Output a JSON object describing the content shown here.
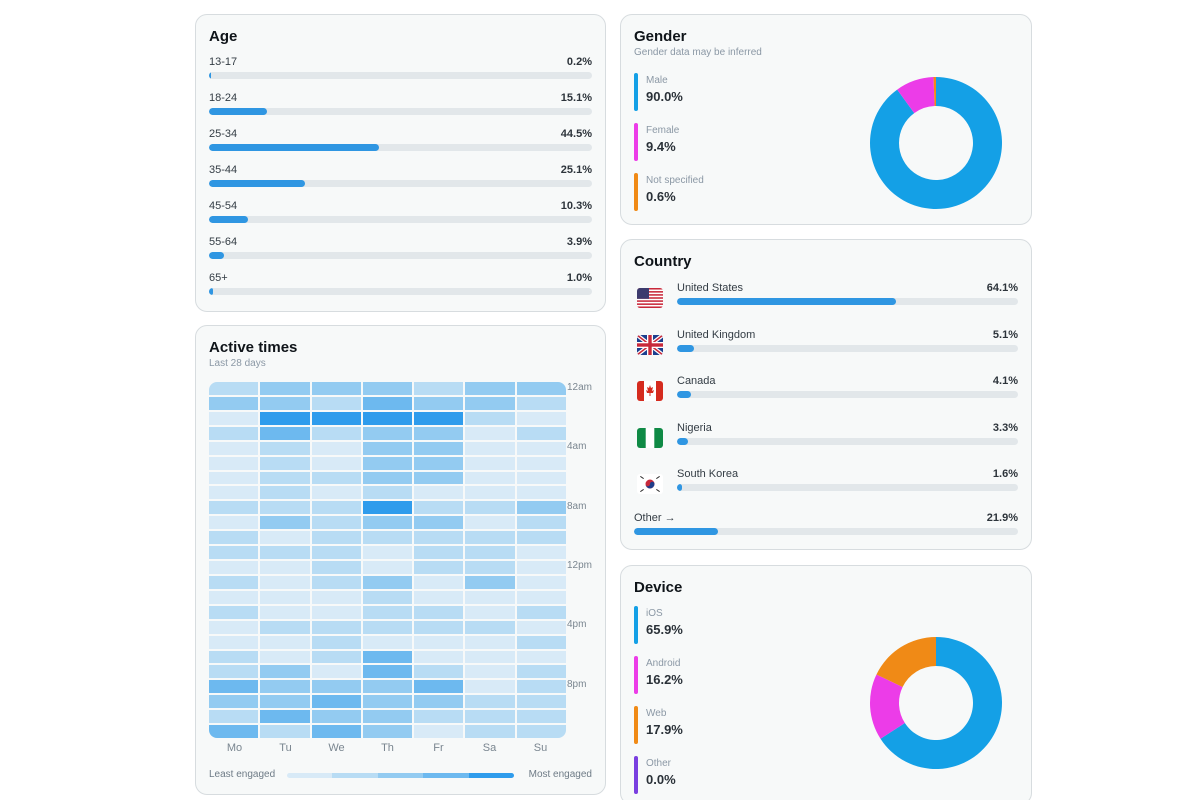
{
  "colors": {
    "accent_blue": "#2f96e2",
    "donut_blue": "#14a0e6",
    "magenta": "#ec3ce8",
    "orange": "#f08a16",
    "purple": "#7a3fe0",
    "track": "#e2e7ea",
    "heat_levels": [
      "#d8eaf7",
      "#b8dcf4",
      "#93cbf1",
      "#6db9ef",
      "#2f9cec"
    ]
  },
  "age": {
    "title": "Age",
    "items": [
      {
        "label": "13-17",
        "value": "0.2%",
        "pct": 0.2
      },
      {
        "label": "18-24",
        "value": "15.1%",
        "pct": 15.1
      },
      {
        "label": "25-34",
        "value": "44.5%",
        "pct": 44.5
      },
      {
        "label": "35-44",
        "value": "25.1%",
        "pct": 25.1
      },
      {
        "label": "45-54",
        "value": "10.3%",
        "pct": 10.3
      },
      {
        "label": "55-64",
        "value": "3.9%",
        "pct": 3.9
      },
      {
        "label": "65+",
        "value": "1.0%",
        "pct": 1.0
      }
    ]
  },
  "gender": {
    "title": "Gender",
    "subtitle": "Gender data may be inferred",
    "items": [
      {
        "label": "Male",
        "value": "90.0%",
        "pct": 90.0,
        "color": "#14a0e6"
      },
      {
        "label": "Female",
        "value": "9.4%",
        "pct": 9.4,
        "color": "#ec3ce8"
      },
      {
        "label": "Not specified",
        "value": "0.6%",
        "pct": 0.6,
        "color": "#f08a16"
      }
    ]
  },
  "country": {
    "title": "Country",
    "items": [
      {
        "label": "United States",
        "value": "64.1%",
        "pct": 64.1,
        "flag": "us-flag-icon"
      },
      {
        "label": "United Kingdom",
        "value": "5.1%",
        "pct": 5.1,
        "flag": "uk-flag-icon"
      },
      {
        "label": "Canada",
        "value": "4.1%",
        "pct": 4.1,
        "flag": "canada-flag-icon"
      },
      {
        "label": "Nigeria",
        "value": "3.3%",
        "pct": 3.3,
        "flag": "nigeria-flag-icon"
      },
      {
        "label": "South Korea",
        "value": "1.6%",
        "pct": 1.6,
        "flag": "south-korea-flag-icon"
      }
    ],
    "other": {
      "label": "Other →",
      "value": "21.9%",
      "pct": 21.9
    }
  },
  "active_times": {
    "title": "Active times",
    "subtitle": "Last 28 days",
    "days": [
      "Mo",
      "Tu",
      "We",
      "Th",
      "Fr",
      "Sa",
      "Su"
    ],
    "time_labels": [
      "12am",
      "4am",
      "8am",
      "12pm",
      "4pm",
      "8pm"
    ],
    "legend_least": "Least engaged",
    "legend_most": "Most engaged",
    "grid": [
      [
        2,
        3,
        3,
        3,
        2,
        3,
        3
      ],
      [
        3,
        3,
        2,
        4,
        3,
        3,
        2
      ],
      [
        1,
        5,
        5,
        5,
        5,
        2,
        1
      ],
      [
        2,
        4,
        2,
        3,
        3,
        1,
        2
      ],
      [
        1,
        2,
        1,
        3,
        3,
        1,
        1
      ],
      [
        1,
        2,
        1,
        3,
        3,
        1,
        1
      ],
      [
        1,
        2,
        2,
        3,
        3,
        1,
        1
      ],
      [
        1,
        2,
        1,
        2,
        1,
        1,
        1
      ],
      [
        2,
        2,
        2,
        5,
        2,
        2,
        3
      ],
      [
        1,
        3,
        2,
        3,
        3,
        1,
        2
      ],
      [
        2,
        1,
        2,
        2,
        2,
        2,
        2
      ],
      [
        2,
        2,
        2,
        1,
        2,
        2,
        1
      ],
      [
        1,
        1,
        2,
        1,
        2,
        2,
        1
      ],
      [
        2,
        1,
        2,
        3,
        1,
        3,
        1
      ],
      [
        1,
        1,
        1,
        2,
        1,
        1,
        1
      ],
      [
        2,
        1,
        1,
        2,
        2,
        1,
        2
      ],
      [
        1,
        2,
        2,
        2,
        2,
        2,
        1
      ],
      [
        1,
        1,
        2,
        1,
        1,
        1,
        2
      ],
      [
        2,
        1,
        2,
        4,
        1,
        1,
        1
      ],
      [
        2,
        3,
        1,
        4,
        2,
        1,
        2
      ],
      [
        4,
        3,
        3,
        3,
        4,
        1,
        2
      ],
      [
        3,
        3,
        4,
        3,
        3,
        2,
        2
      ],
      [
        2,
        4,
        3,
        3,
        2,
        2,
        2
      ],
      [
        4,
        2,
        4,
        3,
        1,
        2,
        2
      ]
    ]
  },
  "device": {
    "title": "Device",
    "items": [
      {
        "label": "iOS",
        "value": "65.9%",
        "pct": 65.9,
        "color": "#14a0e6"
      },
      {
        "label": "Android",
        "value": "16.2%",
        "pct": 16.2,
        "color": "#ec3ce8"
      },
      {
        "label": "Web",
        "value": "17.9%",
        "pct": 17.9,
        "color": "#f08a16"
      },
      {
        "label": "Other",
        "value": "0.0%",
        "pct": 0.0,
        "color": "#7a3fe0"
      }
    ]
  }
}
